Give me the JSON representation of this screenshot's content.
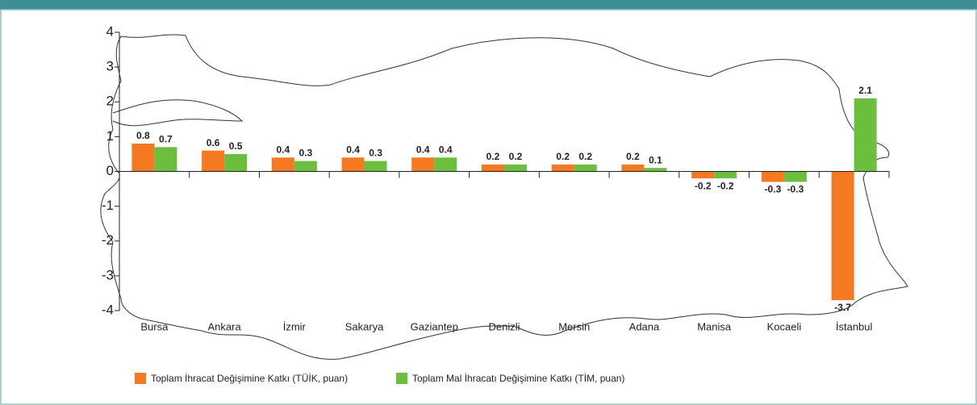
{
  "chart_data": {
    "type": "bar",
    "categories": [
      "Bursa",
      "Ankara",
      "İzmir",
      "Sakarya",
      "Gaziantep",
      "Denizli",
      "Mersin",
      "Adana",
      "Manisa",
      "Kocaeli",
      "İstanbul"
    ],
    "series": [
      {
        "name": "Toplam İhracat Değişimine Katkı (TÜİK, puan)",
        "color": "#f47920",
        "values": [
          0.8,
          0.6,
          0.4,
          0.4,
          0.4,
          0.2,
          0.2,
          0.2,
          -0.2,
          -0.3,
          -3.7
        ]
      },
      {
        "name": "Toplam Mal İhracatı Değişimine Katkı (TİM, puan)",
        "color": "#6cbf3c",
        "values": [
          0.7,
          0.5,
          0.3,
          0.3,
          0.4,
          0.2,
          0.2,
          0.1,
          -0.2,
          -0.3,
          2.1
        ]
      }
    ],
    "ylim": [
      -4,
      4
    ],
    "yticks": [
      -4,
      -3,
      -2,
      -1,
      0,
      1,
      2,
      3,
      4
    ],
    "legend": "bottom-left"
  }
}
